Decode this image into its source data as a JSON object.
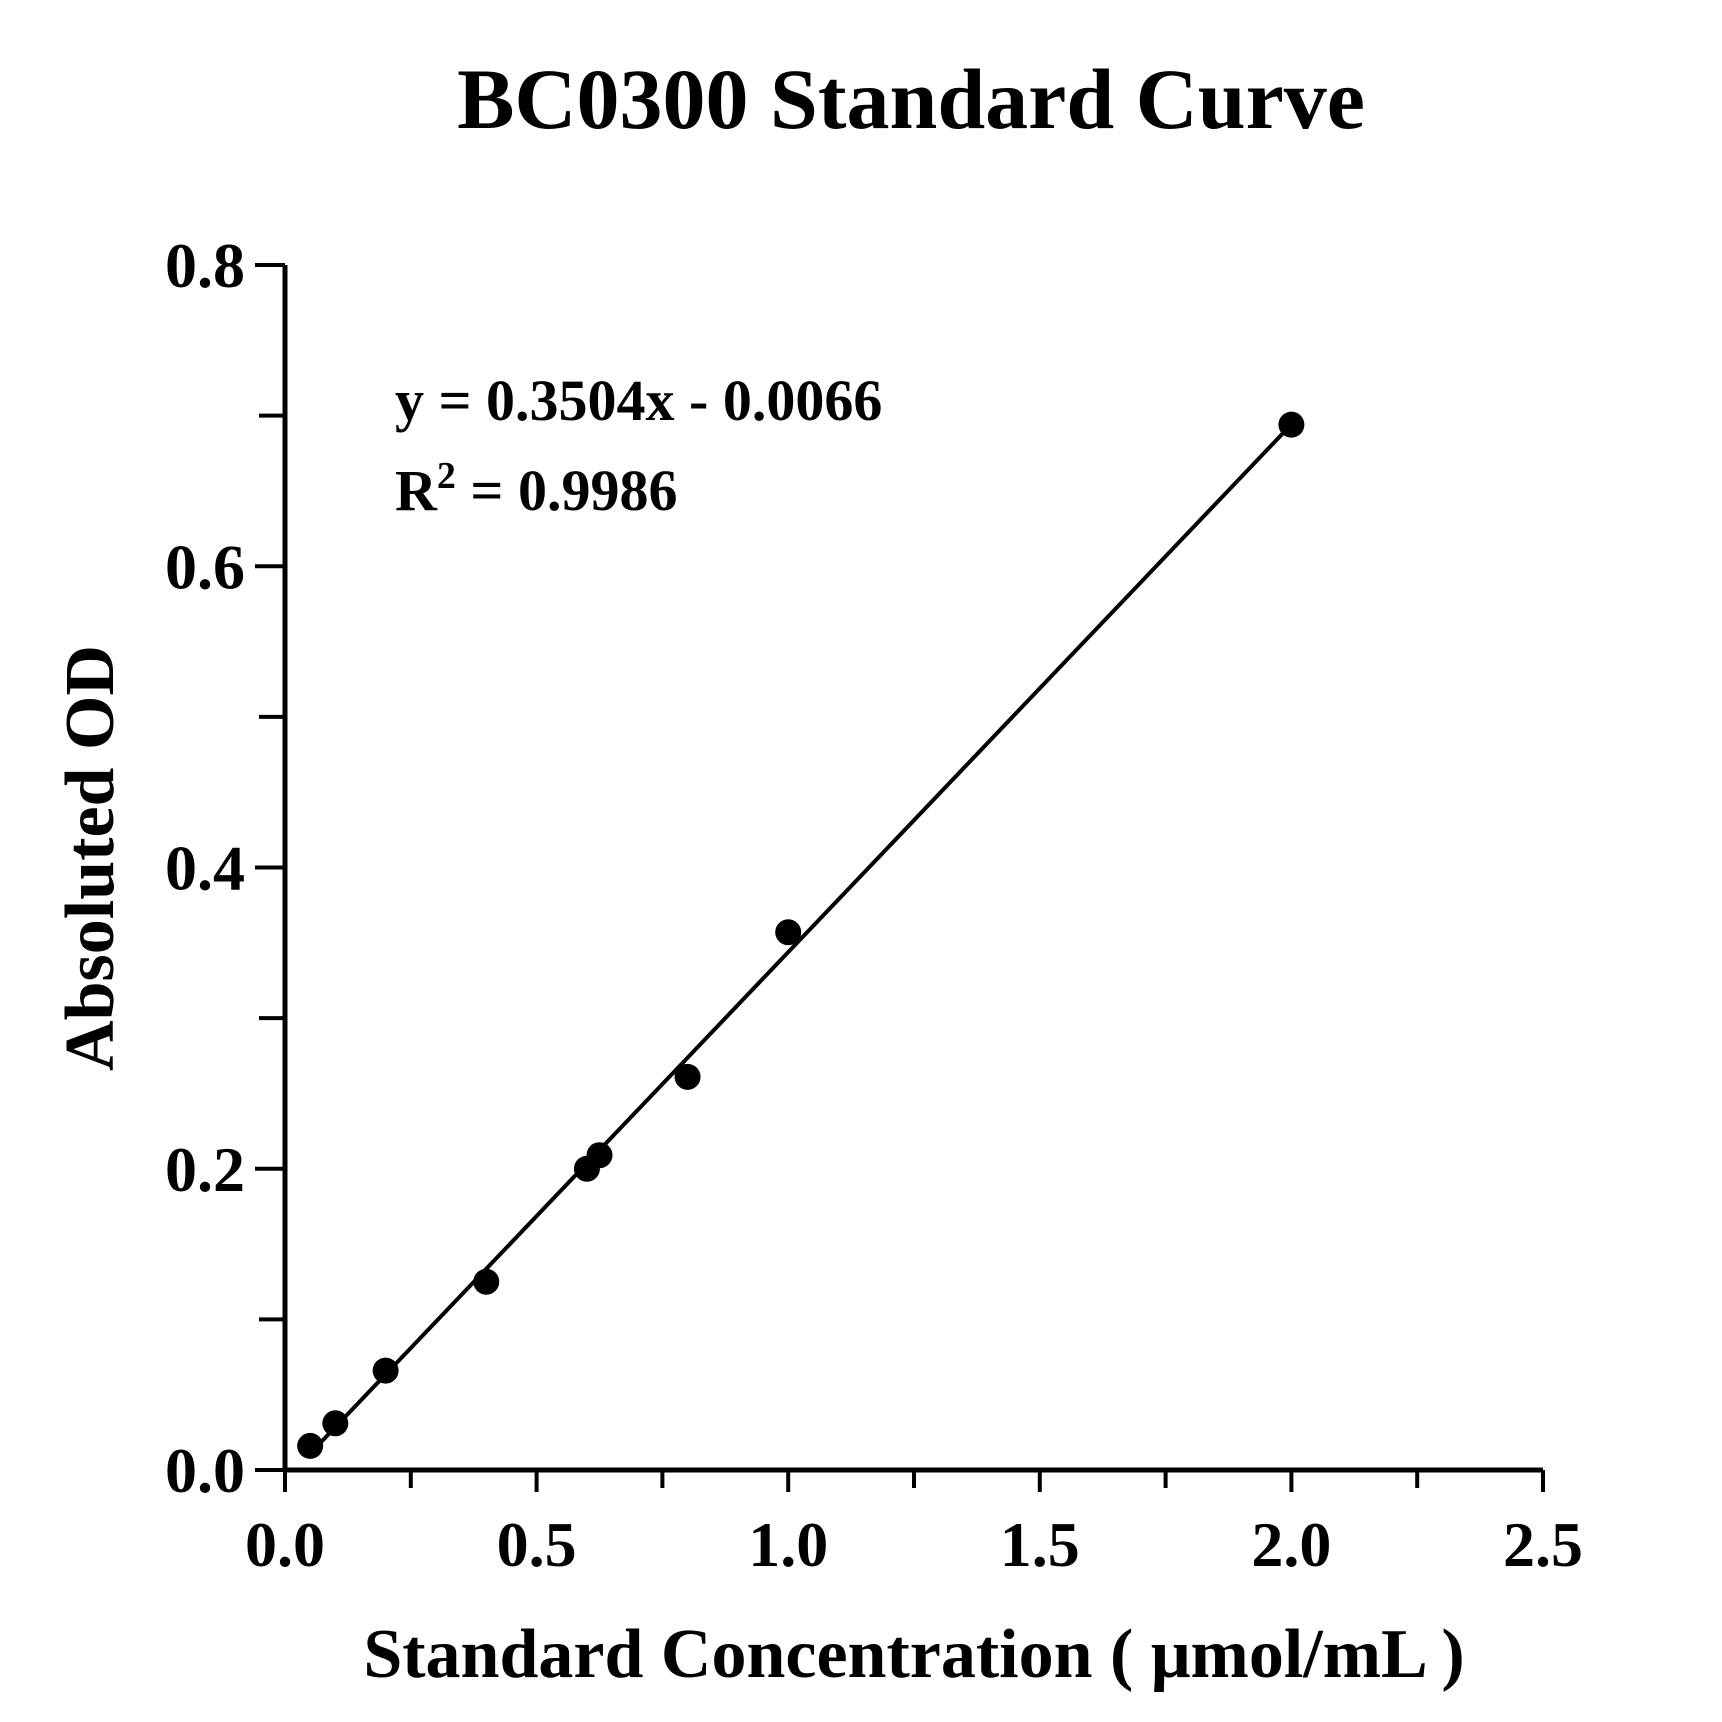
{
  "chart_data": {
    "type": "scatter",
    "title": "BC0300 Standard Curve",
    "xlabel": "Standard Concentration ( μmol/mL )",
    "ylabel": "Absoluted OD",
    "xlim": [
      0,
      2.5
    ],
    "ylim": [
      0,
      0.8
    ],
    "x_ticks": [
      "0.0",
      "0.5",
      "1.0",
      "1.5",
      "2.0",
      "2.5"
    ],
    "y_ticks": [
      "0.0",
      "0.2",
      "0.4",
      "0.6",
      "0.8"
    ],
    "x_minor_ticks": [
      0.25,
      0.75,
      1.25,
      1.75,
      2.25
    ],
    "y_minor_ticks": [
      0.1,
      0.3,
      0.5,
      0.7
    ],
    "series": [
      {
        "x": [
          0.05,
          0.1,
          0.2,
          0.4,
          0.6,
          0.625,
          0.8,
          1.0,
          2.0
        ],
        "y": [
          0.016,
          0.031,
          0.066,
          0.125,
          0.2,
          0.209,
          0.261,
          0.357,
          0.694
        ]
      }
    ],
    "trendline": {
      "type": "linear",
      "slope": 0.3504,
      "intercept": -0.0066,
      "x_range": [
        0.05,
        2.0
      ]
    },
    "annotations": {
      "equation": "y = 0.3504x - 0.0066",
      "r2_prefix": "R",
      "r2_superscript": "2",
      "r2_value": " = 0.9986"
    },
    "grid": false,
    "legend": "none",
    "colors": {
      "marker": "#000000",
      "line": "#000000"
    }
  }
}
